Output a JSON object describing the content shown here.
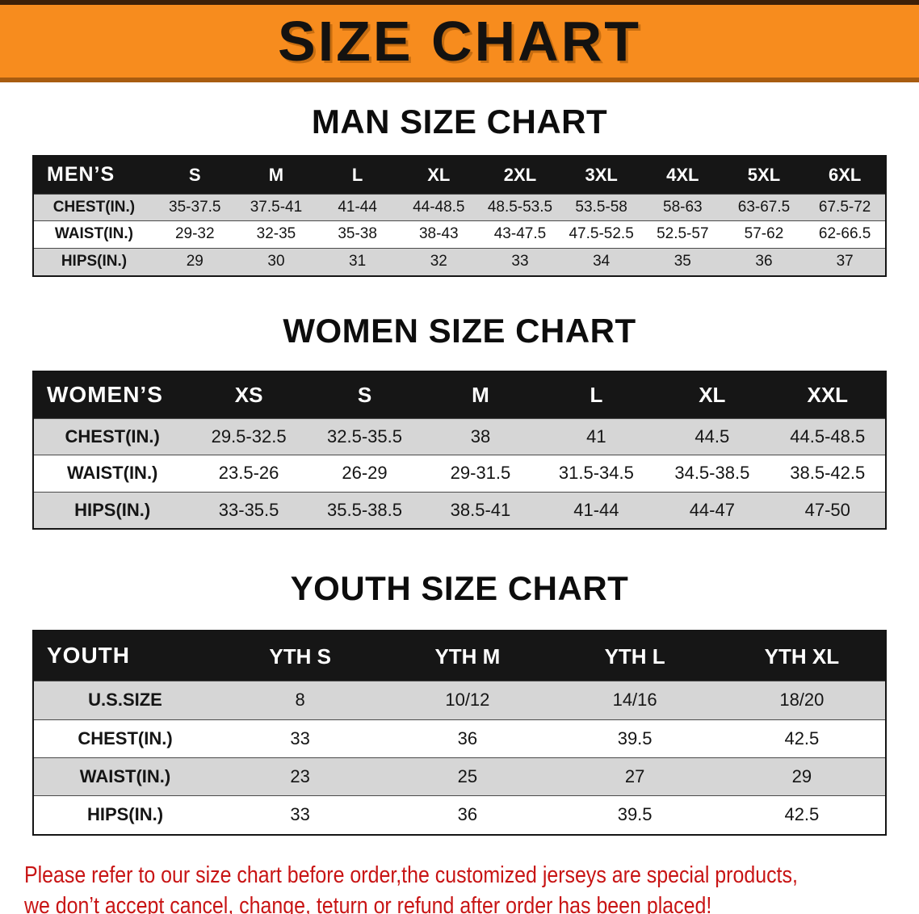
{
  "banner": {
    "title": "SIZE CHART",
    "bg_color": "#f78c1e",
    "text_color": "#141210"
  },
  "sections": [
    {
      "heading": "MAN SIZE CHART",
      "table": {
        "header": [
          "MEN’S",
          "S",
          "M",
          "L",
          "XL",
          "2XL",
          "3XL",
          "4XL",
          "5XL",
          "6XL"
        ],
        "rows": [
          [
            "CHEST(IN.)",
            "35-37.5",
            "37.5-41",
            "41-44",
            "44-48.5",
            "48.5-53.5",
            "53.5-58",
            "58-63",
            "63-67.5",
            "67.5-72"
          ],
          [
            "WAIST(IN.)",
            "29-32",
            "32-35",
            "35-38",
            "38-43",
            "43-47.5",
            "47.5-52.5",
            "52.5-57",
            "57-62",
            "62-66.5"
          ],
          [
            "HIPS(IN.)",
            "29",
            "30",
            "31",
            "32",
            "33",
            "34",
            "35",
            "36",
            "37"
          ]
        ]
      }
    },
    {
      "heading": "WOMEN SIZE CHART",
      "table": {
        "header": [
          "WOMEN’S",
          "XS",
          "S",
          "M",
          "L",
          "XL",
          "XXL"
        ],
        "rows": [
          [
            "CHEST(IN.)",
            "29.5-32.5",
            "32.5-35.5",
            "38",
            "41",
            "44.5",
            "44.5-48.5"
          ],
          [
            "WAIST(IN.)",
            "23.5-26",
            "26-29",
            "29-31.5",
            "31.5-34.5",
            "34.5-38.5",
            "38.5-42.5"
          ],
          [
            "HIPS(IN.)",
            "33-35.5",
            "35.5-38.5",
            "38.5-41",
            "41-44",
            "44-47",
            "47-50"
          ]
        ]
      }
    },
    {
      "heading": "YOUTH SIZE CHART",
      "table": {
        "header": [
          "YOUTH",
          "YTH S",
          "YTH M",
          "YTH L",
          "YTH XL"
        ],
        "rows": [
          [
            "U.S.SIZE",
            "8",
            "10/12",
            "14/16",
            "18/20"
          ],
          [
            "CHEST(IN.)",
            "33",
            "36",
            "39.5",
            "42.5"
          ],
          [
            "WAIST(IN.)",
            "23",
            "25",
            "27",
            "29"
          ],
          [
            "HIPS(IN.)",
            "33",
            "36",
            "39.5",
            "42.5"
          ]
        ]
      }
    }
  ],
  "disclaimer": {
    "lines": [
      "Please refer to our size chart before order,the customized jerseys are special products,",
      "we don’t accept cancel, change, teturn or refund after order has been placed!"
    ],
    "color": "#c81414"
  },
  "table_colors": {
    "header_bg": "#161616",
    "header_text": "#ffffff",
    "stripe_gray": "#d6d6d6",
    "stripe_white": "#ffffff"
  }
}
